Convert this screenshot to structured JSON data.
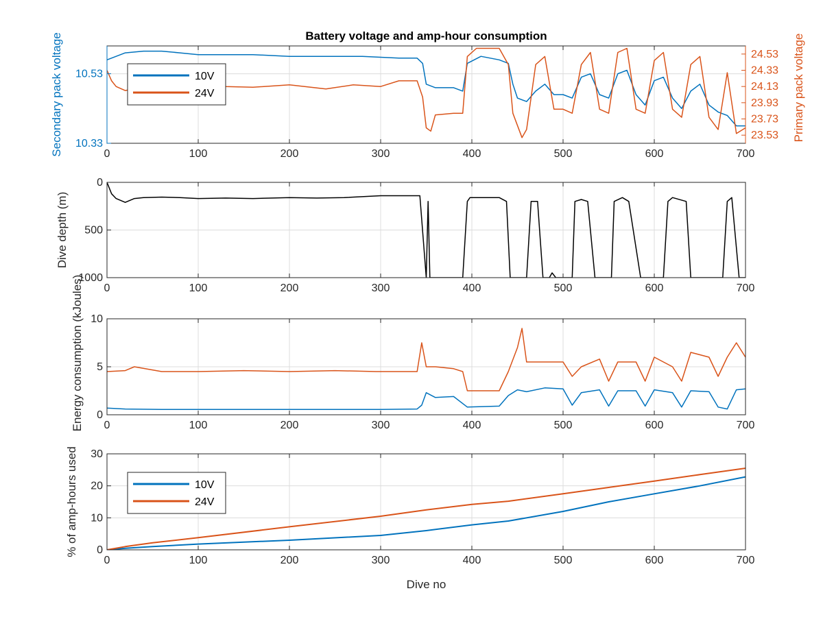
{
  "colors": {
    "v10": "#0072BD",
    "v24": "#D95319",
    "depth": "#000000",
    "axis": "#262626",
    "grid": "#dcdcdc"
  },
  "chart_data": [
    {
      "type": "line",
      "title": "Battery voltage and amp-hour consumption",
      "xlabel": "",
      "ylabel": "Secondary pack voltage",
      "ylabel_right": "Primary pack voltage",
      "xlim": [
        0,
        700
      ],
      "ylim": [
        10.33,
        10.61
      ],
      "ylim_right": [
        23.43,
        24.63
      ],
      "xticks": [
        0,
        100,
        200,
        300,
        400,
        500,
        600,
        700
      ],
      "yticks": [
        10.33,
        10.53
      ],
      "yticks_right": [
        23.53,
        23.73,
        23.93,
        24.13,
        24.33,
        24.53
      ],
      "grid": true,
      "legend": "top-left",
      "series": [
        {
          "name": "10V",
          "axis": "left",
          "x": [
            0,
            10,
            20,
            40,
            60,
            80,
            100,
            130,
            160,
            200,
            240,
            280,
            320,
            340,
            346,
            350,
            360,
            380,
            390,
            395,
            410,
            430,
            440,
            445,
            450,
            460,
            470,
            480,
            490,
            500,
            510,
            520,
            530,
            540,
            550,
            560,
            570,
            580,
            590,
            600,
            610,
            620,
            630,
            640,
            650,
            660,
            670,
            680,
            690,
            700
          ],
          "y": [
            10.57,
            10.58,
            10.59,
            10.595,
            10.595,
            10.59,
            10.585,
            10.585,
            10.585,
            10.58,
            10.58,
            10.58,
            10.575,
            10.575,
            10.56,
            10.5,
            10.49,
            10.49,
            10.48,
            10.56,
            10.58,
            10.57,
            10.56,
            10.5,
            10.46,
            10.45,
            10.48,
            10.5,
            10.47,
            10.47,
            10.46,
            10.52,
            10.53,
            10.47,
            10.46,
            10.53,
            10.54,
            10.47,
            10.44,
            10.51,
            10.52,
            10.46,
            10.43,
            10.48,
            10.5,
            10.44,
            10.42,
            10.41,
            10.38,
            10.38
          ]
        },
        {
          "name": "24V",
          "axis": "right",
          "x": [
            0,
            5,
            10,
            20,
            40,
            60,
            80,
            100,
            130,
            160,
            200,
            240,
            270,
            300,
            320,
            340,
            346,
            350,
            355,
            360,
            380,
            390,
            395,
            405,
            430,
            440,
            445,
            455,
            460,
            470,
            480,
            490,
            500,
            510,
            520,
            530,
            540,
            550,
            560,
            570,
            580,
            590,
            600,
            610,
            620,
            630,
            640,
            650,
            660,
            670,
            680,
            690,
            700
          ],
          "y": [
            24.33,
            24.2,
            24.13,
            24.08,
            24.13,
            24.12,
            24.1,
            24.15,
            24.13,
            24.12,
            24.15,
            24.1,
            24.15,
            24.13,
            24.2,
            24.2,
            24.0,
            23.62,
            23.58,
            23.78,
            23.8,
            23.8,
            24.5,
            24.6,
            24.6,
            24.4,
            23.8,
            23.5,
            23.6,
            24.4,
            24.5,
            23.85,
            23.85,
            23.8,
            24.4,
            24.55,
            23.85,
            23.8,
            24.55,
            24.6,
            23.85,
            23.8,
            24.45,
            24.55,
            23.85,
            23.75,
            24.4,
            24.5,
            23.75,
            23.6,
            24.3,
            23.55,
            23.62
          ]
        }
      ]
    },
    {
      "type": "line",
      "xlabel": "",
      "ylabel": "Dive depth (m)",
      "xlim": [
        0,
        700
      ],
      "ylim": [
        0,
        1000
      ],
      "y_reversed": true,
      "xticks": [
        0,
        100,
        200,
        300,
        400,
        500,
        600,
        700
      ],
      "yticks": [
        0,
        500,
        1000
      ],
      "grid": true,
      "series": [
        {
          "x": [
            0,
            5,
            10,
            20,
            30,
            40,
            60,
            80,
            100,
            130,
            160,
            200,
            230,
            260,
            300,
            343,
            350,
            352,
            354,
            356,
            360,
            390,
            395,
            398,
            430,
            438,
            442,
            445,
            460,
            465,
            472,
            478,
            485,
            488,
            492,
            510,
            513,
            520,
            527,
            535,
            540,
            553,
            556,
            565,
            572,
            585,
            590,
            595,
            610,
            615,
            620,
            635,
            640,
            645,
            653,
            675,
            680,
            685,
            693,
            700
          ],
          "y": [
            0,
            120,
            170,
            210,
            170,
            160,
            155,
            160,
            170,
            165,
            170,
            160,
            165,
            160,
            140,
            140,
            1000,
            200,
            1000,
            1000,
            1000,
            1000,
            200,
            160,
            160,
            200,
            1000,
            1000,
            1000,
            200,
            200,
            1000,
            1000,
            950,
            1000,
            1000,
            200,
            180,
            200,
            1000,
            1000,
            1000,
            200,
            160,
            200,
            1000,
            1000,
            1000,
            1000,
            200,
            160,
            200,
            1000,
            1000,
            1000,
            1000,
            200,
            160,
            1000,
            1000
          ]
        }
      ]
    },
    {
      "type": "line",
      "xlabel": "",
      "ylabel": "Energy consumption (kJoules)",
      "xlim": [
        0,
        700
      ],
      "ylim": [
        0,
        10
      ],
      "xticks": [
        0,
        100,
        200,
        300,
        400,
        500,
        600,
        700
      ],
      "yticks": [
        0,
        5,
        10
      ],
      "grid": true,
      "series": [
        {
          "name": "10V",
          "x": [
            0,
            20,
            60,
            100,
            200,
            300,
            340,
            345,
            350,
            360,
            380,
            395,
            430,
            440,
            450,
            460,
            480,
            500,
            510,
            520,
            540,
            550,
            560,
            580,
            590,
            600,
            620,
            630,
            640,
            660,
            670,
            680,
            690,
            700
          ],
          "y": [
            0.7,
            0.6,
            0.55,
            0.55,
            0.55,
            0.55,
            0.6,
            1.0,
            2.3,
            1.8,
            1.9,
            0.8,
            0.9,
            2.0,
            2.6,
            2.4,
            2.8,
            2.7,
            1.0,
            2.3,
            2.6,
            0.9,
            2.5,
            2.5,
            0.9,
            2.6,
            2.3,
            0.8,
            2.5,
            2.4,
            0.8,
            0.6,
            2.6,
            2.7
          ]
        },
        {
          "name": "24V",
          "x": [
            0,
            20,
            30,
            60,
            100,
            150,
            200,
            250,
            295,
            300,
            340,
            345,
            350,
            355,
            360,
            380,
            390,
            395,
            430,
            440,
            450,
            455,
            460,
            480,
            500,
            510,
            520,
            540,
            550,
            560,
            580,
            590,
            600,
            620,
            630,
            640,
            660,
            670,
            680,
            690,
            700
          ],
          "y": [
            4.5,
            4.6,
            5.0,
            4.5,
            4.5,
            4.6,
            4.5,
            4.6,
            4.5,
            4.5,
            4.5,
            7.5,
            5.0,
            5.0,
            5.0,
            4.8,
            4.5,
            2.5,
            2.5,
            4.5,
            7.0,
            9.0,
            5.5,
            5.5,
            5.5,
            4.0,
            5.0,
            5.8,
            3.5,
            5.5,
            5.5,
            3.5,
            6.0,
            5.0,
            3.5,
            6.5,
            6.0,
            4.0,
            6.0,
            7.5,
            6.0
          ]
        }
      ]
    },
    {
      "type": "line",
      "xlabel": "Dive no",
      "ylabel": "% of amp-hours used",
      "xlim": [
        0,
        700
      ],
      "ylim": [
        0,
        30
      ],
      "xticks": [
        0,
        100,
        200,
        300,
        400,
        500,
        600,
        700
      ],
      "yticks": [
        0,
        10,
        20,
        30
      ],
      "grid": true,
      "legend": "top-left",
      "series": [
        {
          "name": "10V",
          "x": [
            0,
            20,
            50,
            100,
            200,
            300,
            350,
            400,
            440,
            500,
            550,
            600,
            650,
            700
          ],
          "y": [
            0,
            0.5,
            1,
            1.8,
            3.0,
            4.5,
            6.0,
            7.8,
            9.0,
            12.0,
            15.0,
            17.5,
            20.0,
            22.8
          ]
        },
        {
          "name": "24V",
          "x": [
            0,
            20,
            50,
            100,
            200,
            300,
            350,
            400,
            440,
            500,
            550,
            600,
            650,
            700
          ],
          "y": [
            0,
            1,
            2.2,
            3.8,
            7.2,
            10.5,
            12.5,
            14.2,
            15.2,
            17.5,
            19.5,
            21.5,
            23.5,
            25.5
          ]
        }
      ]
    }
  ]
}
